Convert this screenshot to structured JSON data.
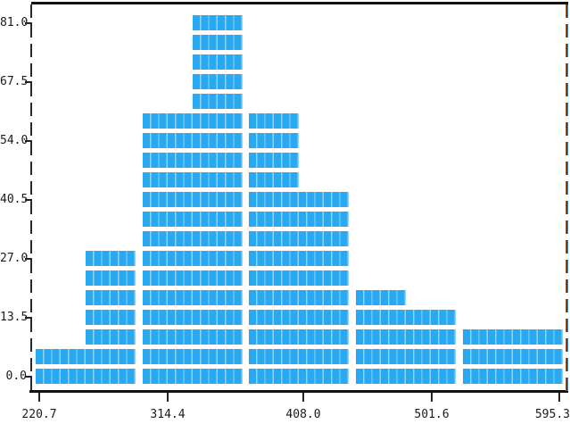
{
  "figure": {
    "background": "#ffffff",
    "bar_color": "#29a9f1",
    "bar_separator_color": "#8fd4f8",
    "axis_color": "#111111",
    "text_color": "#1a1a1a",
    "right_axis_fringe_left": "#a85c28",
    "right_axis_core": "#20364e",
    "right_axis_fringe_right": "#3e85c8"
  },
  "chart_data": {
    "type": "bar",
    "subtype": "histogram",
    "title": "",
    "xlabel": "",
    "ylabel": "",
    "x_tick_labels": [
      "220.7",
      "314.4",
      "408.0",
      "501.6",
      "595.3"
    ],
    "y_tick_labels": [
      "81.0",
      "67.5",
      "54.0",
      "40.5",
      "27.0",
      "13.5",
      "0.0"
    ],
    "xlim": [
      220.7,
      595.3
    ],
    "ylim": [
      0.0,
      81.0
    ],
    "bins": 10,
    "bin_width": 37.46,
    "bin_left_edges": [
      220.7,
      258.2,
      295.6,
      333.1,
      370.5,
      408.0,
      445.5,
      482.9,
      520.4,
      557.8
    ],
    "approx_counts": [
      4.5,
      27,
      58.5,
      81,
      58.5,
      40.5,
      18,
      13.5,
      9,
      9
    ],
    "bar_row_counts": [
      2,
      7,
      14,
      19,
      14,
      10,
      5,
      4,
      3,
      3
    ],
    "units_per_row": 4.5,
    "grid": false,
    "legend": null
  }
}
